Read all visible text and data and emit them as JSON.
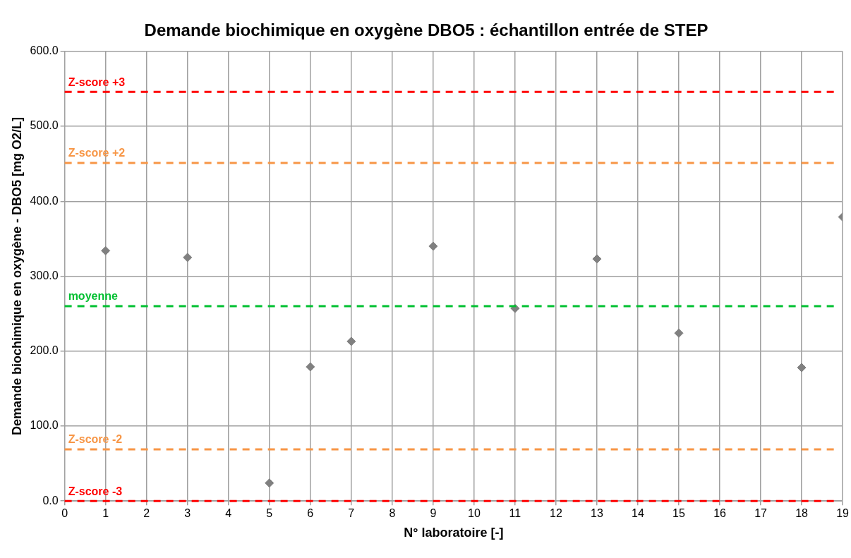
{
  "chart_data": {
    "type": "scatter",
    "title": "Demande biochimique en oxygène DBO5 : échantillon entrée de STEP",
    "xlabel": "N° laboratoire [-]",
    "ylabel": "Demande biochimique en oxygène - DBO5 [mg O2/L]",
    "x": [
      1,
      3,
      5,
      6,
      7,
      9,
      11,
      13,
      15,
      18,
      19
    ],
    "values": [
      334,
      325,
      24,
      179,
      213,
      340,
      257,
      323,
      224,
      178,
      379
    ],
    "color": "#808080",
    "marker": "diamond",
    "xlim": [
      0,
      19
    ],
    "xticks": [
      0,
      1,
      2,
      3,
      4,
      5,
      6,
      7,
      8,
      9,
      10,
      11,
      12,
      13,
      14,
      15,
      16,
      17,
      18,
      19
    ],
    "ylim": [
      0,
      600
    ],
    "yticks": [
      {
        "value": 0,
        "label": "0.0"
      },
      {
        "value": 100,
        "label": "100.0"
      },
      {
        "value": 200,
        "label": "200.0"
      },
      {
        "value": 300,
        "label": "300.0"
      },
      {
        "value": 400,
        "label": "400.0"
      },
      {
        "value": 500,
        "label": "500.0"
      },
      {
        "value": 600,
        "label": "600.0"
      }
    ],
    "grid": true,
    "legend": false,
    "ref_lines": [
      {
        "axis": "y",
        "value": 546,
        "label": "Z-score +3",
        "color": "#ff0000",
        "line_style": "dashed"
      },
      {
        "axis": "y",
        "value": 451,
        "label": "Z-score +2",
        "color": "#f79646",
        "line_style": "dashed"
      },
      {
        "axis": "y",
        "value": 260,
        "label": "moyenne",
        "color": "#00c030",
        "line_style": "dashed"
      },
      {
        "axis": "y",
        "value": 69,
        "label": "Z-score -2",
        "color": "#f79646",
        "line_style": "dashed"
      },
      {
        "axis": "y",
        "value": 0,
        "label": "Z-score -3",
        "color": "#ff0000",
        "line_style": "dashed"
      }
    ]
  }
}
